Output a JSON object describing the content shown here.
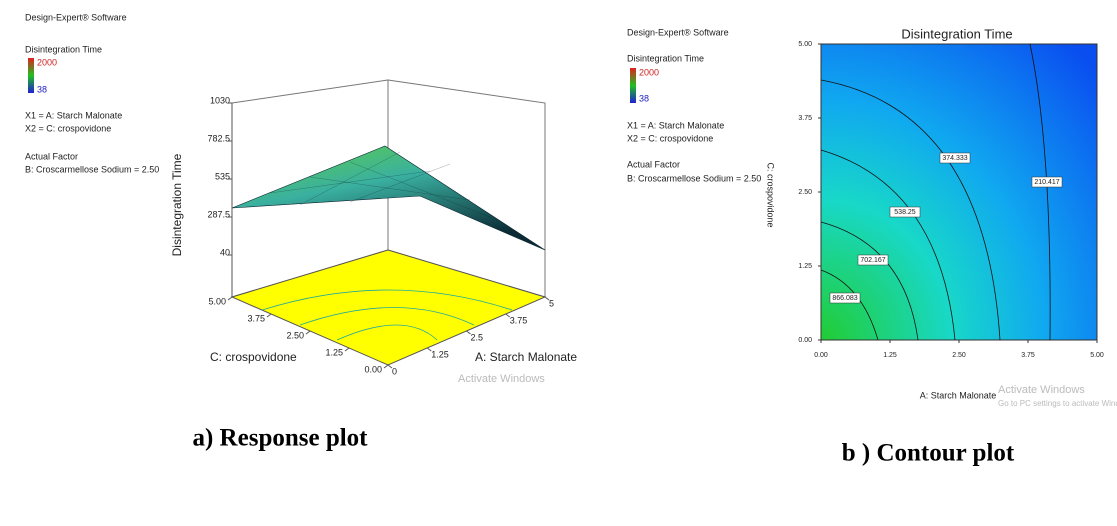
{
  "chart_data": [
    {
      "type": "surface3d",
      "software": "Design-Expert® Software",
      "response": "Disintegration Time",
      "legend_max": 2000,
      "legend_min": 38,
      "x1": "X1 = A: Starch Malonate",
      "x2": "X2 = C: crospovidone",
      "actual_factor_title": "Actual Factor",
      "actual_factor": "B: Croscarmellose Sodium = 2.50",
      "zlabel": "Disintegration Time",
      "xlabel": "A: Starch Malonate",
      "ylabel": "C: crospovidone",
      "xlim": [
        0,
        5
      ],
      "xticks": [
        0,
        1.25,
        2.5,
        3.75,
        5
      ],
      "ylim": [
        0,
        5
      ],
      "yticks": [
        {
          "value": 0,
          "label": "0.00"
        },
        {
          "value": 1.25,
          "label": "1.25"
        },
        {
          "value": 2.5,
          "label": "2.50"
        },
        {
          "value": 3.75,
          "label": "3.75"
        },
        {
          "value": 5,
          "label": "5.00"
        }
      ],
      "zlim": [
        40,
        1030
      ],
      "zticks": [
        40,
        287.5,
        535,
        782.5,
        1030
      ],
      "caption": "a) Response plot",
      "watermark": "Activate Windows"
    },
    {
      "type": "contour",
      "software": "Design-Expert® Software",
      "response": "Disintegration Time",
      "legend_max": 2000,
      "legend_min": 38,
      "x1": "X1 = A: Starch Malonate",
      "x2": "X2 = C: crospovidone",
      "actual_factor_title": "Actual Factor",
      "actual_factor": "B: Croscarmellose Sodium = 2.50",
      "title": "Disintegration Time",
      "xlabel": "A: Starch Malonate",
      "ylabel": "C: crospovidone",
      "xlim": [
        0,
        5
      ],
      "xticks": [
        {
          "value": 0,
          "label": "0.00"
        },
        {
          "value": 1.25,
          "label": "1.25"
        },
        {
          "value": 2.5,
          "label": "2.50"
        },
        {
          "value": 3.75,
          "label": "3.75"
        },
        {
          "value": 5,
          "label": "5.00"
        }
      ],
      "ylim": [
        0,
        5
      ],
      "yticks": [
        {
          "value": 0,
          "label": "0.00"
        },
        {
          "value": 1.25,
          "label": "1.25"
        },
        {
          "value": 2.5,
          "label": "2.50"
        },
        {
          "value": 3.75,
          "label": "3.75"
        },
        {
          "value": 5,
          "label": "5.00"
        }
      ],
      "contour_levels": [
        866.083,
        702.167,
        538.25,
        374.333,
        210.417
      ],
      "caption": "b ) Contour plot",
      "watermark": "Activate Windows",
      "watermark_note": "Go to PC settings to activate Windows."
    }
  ]
}
